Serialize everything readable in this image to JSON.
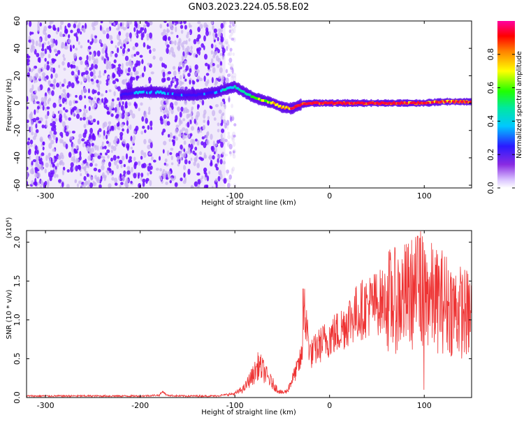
{
  "title": "GN03.2023.224.05.58.E02",
  "colors": {
    "signal_line": "#ee3333",
    "noise_dot": "#6a0aff",
    "noise_faint": "#c8b0f0"
  },
  "chart_data": [
    {
      "type": "heatmap",
      "xlabel": "Height of straight line (km)",
      "ylabel": "Frequency (Hz)",
      "xlim": [
        -320,
        150
      ],
      "ylim": [
        -62,
        60
      ],
      "x_ticks": [
        "-300",
        "-200",
        "-100",
        "0",
        "100"
      ],
      "y_ticks": [
        "60",
        "40",
        "20",
        "0",
        "-20",
        "-40",
        "-60"
      ],
      "grid": false,
      "colorbar": {
        "label": "Normalized spectral amplitude",
        "ticks": [
          "0.0",
          "0.2",
          "0.4",
          "0.6",
          "0.8"
        ],
        "range": [
          0,
          1
        ],
        "colormap": "rainbow: white-violet-blue-cyan-green-yellow-red-magenta"
      },
      "noise_region_x": [
        -320,
        -110
      ],
      "signal_track": {
        "x": [
          -220,
          -200,
          -180,
          -160,
          -140,
          -120,
          -110,
          -100,
          -90,
          -80,
          -70,
          -60,
          -50,
          -40,
          -30,
          -20,
          0,
          20,
          50,
          80,
          100,
          120,
          150
        ],
        "freq": [
          6,
          8,
          8,
          6,
          6,
          8,
          10,
          12,
          8,
          4,
          2,
          0,
          -3,
          -4,
          -1,
          0,
          0,
          0,
          0,
          0,
          0,
          1,
          1
        ],
        "amplitude": [
          0.3,
          0.35,
          0.45,
          0.35,
          0.3,
          0.35,
          0.5,
          0.55,
          0.6,
          0.7,
          0.8,
          0.85,
          0.9,
          0.95,
          1.0,
          1.0,
          1.0,
          1.0,
          1.0,
          0.95,
          0.95,
          0.9,
          0.9
        ]
      }
    },
    {
      "type": "line",
      "xlabel": "Height of straight line (km)",
      "ylabel": "SNR (10 * v/v)",
      "y_scale_label": "(x10⁴)",
      "xlim": [
        -320,
        150
      ],
      "ylim": [
        0,
        2.15
      ],
      "x_ticks": [
        "-300",
        "-200",
        "-100",
        "0",
        "100"
      ],
      "y_ticks": [
        "0.0",
        "0.5",
        "1.0",
        "1.5",
        "2.0"
      ],
      "grid": false,
      "series": [
        {
          "x": [
            -320,
            -300,
            -250,
            -200,
            -180,
            -176,
            -172,
            -160,
            -120,
            -100,
            -90,
            -85,
            -80,
            -75,
            -70,
            -65,
            -60,
            -55,
            -50,
            -45,
            -40,
            -35,
            -30,
            -26,
            -20,
            -10,
            0,
            10,
            20,
            30,
            40,
            50,
            60,
            70,
            80,
            90,
            95,
            100,
            105,
            110,
            120,
            130,
            140,
            150
          ],
          "y": [
            0.02,
            0.02,
            0.02,
            0.02,
            0.03,
            0.08,
            0.03,
            0.02,
            0.02,
            0.05,
            0.12,
            0.22,
            0.3,
            0.42,
            0.35,
            0.25,
            0.18,
            0.1,
            0.06,
            0.08,
            0.22,
            0.35,
            0.5,
            1.05,
            0.55,
            0.68,
            0.78,
            0.85,
            1.0,
            1.1,
            1.18,
            1.22,
            1.25,
            1.25,
            1.3,
            1.35,
            1.4,
            1.3,
            1.35,
            1.25,
            1.25,
            1.15,
            1.1,
            1.05
          ]
        }
      ]
    }
  ]
}
